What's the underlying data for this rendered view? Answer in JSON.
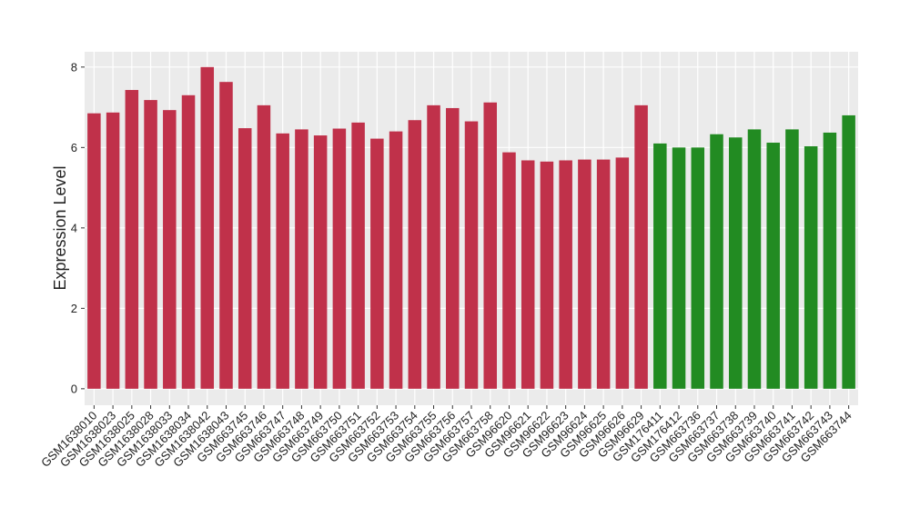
{
  "chart_data": {
    "type": "bar",
    "y_label": "Expression Level",
    "categories": [
      "GSM1638010",
      "GSM1638023",
      "GSM1638025",
      "GSM1638028",
      "GSM1638033",
      "GSM1638034",
      "GSM1638042",
      "GSM1638043",
      "GSM663745",
      "GSM663746",
      "GSM663747",
      "GSM663748",
      "GSM663749",
      "GSM663750",
      "GSM663751",
      "GSM663752",
      "GSM663753",
      "GSM663754",
      "GSM663755",
      "GSM663756",
      "GSM663757",
      "GSM663758",
      "GSM96620",
      "GSM96621",
      "GSM96622",
      "GSM96623",
      "GSM96624",
      "GSM96625",
      "GSM96626",
      "GSM96629",
      "GSM176411",
      "GSM176412",
      "GSM663736",
      "GSM663737",
      "GSM663738",
      "GSM663739",
      "GSM663740",
      "GSM663741",
      "GSM663742",
      "GSM663743",
      "GSM663744"
    ],
    "values": [
      6.85,
      6.87,
      7.43,
      7.18,
      6.93,
      7.3,
      8.0,
      7.63,
      6.48,
      7.05,
      6.35,
      6.45,
      6.3,
      6.47,
      6.62,
      6.22,
      6.4,
      6.68,
      7.05,
      6.98,
      6.65,
      7.12,
      5.88,
      5.68,
      5.65,
      5.68,
      5.7,
      5.7,
      5.75,
      7.05,
      6.1,
      6.0,
      6.0,
      6.33,
      6.25,
      6.45,
      6.12,
      6.45,
      6.03,
      6.37,
      6.8
    ],
    "colors": [
      "#c0314a",
      "#c0314a",
      "#c0314a",
      "#c0314a",
      "#c0314a",
      "#c0314a",
      "#c0314a",
      "#c0314a",
      "#c0314a",
      "#c0314a",
      "#c0314a",
      "#c0314a",
      "#c0314a",
      "#c0314a",
      "#c0314a",
      "#c0314a",
      "#c0314a",
      "#c0314a",
      "#c0314a",
      "#c0314a",
      "#c0314a",
      "#c0314a",
      "#c0314a",
      "#c0314a",
      "#c0314a",
      "#c0314a",
      "#c0314a",
      "#c0314a",
      "#c0314a",
      "#c0314a",
      "#228b22",
      "#228b22",
      "#228b22",
      "#228b22",
      "#228b22",
      "#228b22",
      "#228b22",
      "#228b22",
      "#228b22",
      "#228b22",
      "#228b22"
    ],
    "ylim": [
      -0.41,
      8.38
    ],
    "yticks": [
      0,
      2,
      4,
      6,
      8
    ],
    "grid": true
  }
}
